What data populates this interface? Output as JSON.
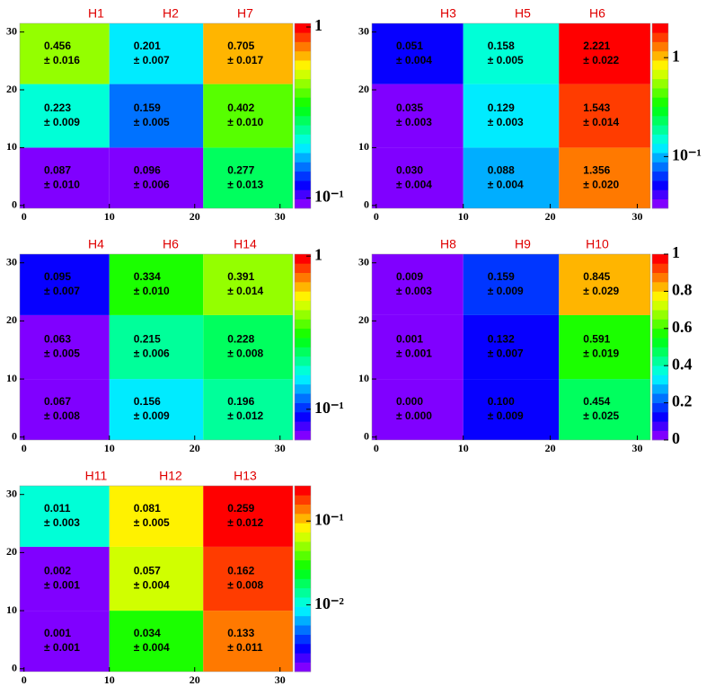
{
  "chart_data": [
    {
      "type": "heatmap",
      "columns": [
        "H1",
        "H2",
        "H7"
      ],
      "xlim": [
        -0.5,
        31.5
      ],
      "xticks": [
        0,
        10,
        20,
        30
      ],
      "ylim": [
        -0.5,
        31.5
      ],
      "yticks": [
        0,
        10,
        20,
        30
      ],
      "xbins": [
        -0.5,
        10,
        21,
        31.5
      ],
      "ybins": [
        -0.5,
        10,
        21,
        31.5
      ],
      "values": [
        [
          0.087,
          0.096,
          0.277
        ],
        [
          0.223,
          0.159,
          0.402
        ],
        [
          0.456,
          0.201,
          0.705
        ]
      ],
      "value_labels": [
        [
          "0.087",
          "0.096",
          "0.277"
        ],
        [
          "0.223",
          "0.159",
          "0.402"
        ],
        [
          "0.456",
          "0.201",
          "0.705"
        ]
      ],
      "errors": [
        [
          0.01,
          0.006,
          0.013
        ],
        [
          0.009,
          0.005,
          0.01
        ],
        [
          0.016,
          0.007,
          0.017
        ]
      ],
      "error_labels": [
        [
          "± 0.010",
          "± 0.006",
          "± 0.013"
        ],
        [
          "± 0.009",
          "± 0.005",
          "± 0.010"
        ],
        [
          "± 0.016",
          "± 0.007",
          "± 0.017"
        ]
      ],
      "zlog": true,
      "zlim": [
        0.087,
        1.05
      ],
      "zticks": [
        1,
        {
          "value": 0.1,
          "label": "10⁻¹"
        }
      ]
    },
    {
      "type": "heatmap",
      "columns": [
        "H3",
        "H5",
        "H6"
      ],
      "xlim": [
        -0.5,
        31.5
      ],
      "xticks": [
        0,
        10,
        20,
        30
      ],
      "ylim": [
        -0.5,
        31.5
      ],
      "yticks": [
        0,
        10,
        20,
        30
      ],
      "xbins": [
        -0.5,
        10,
        21,
        31.5
      ],
      "ybins": [
        -0.5,
        10,
        21,
        31.5
      ],
      "values": [
        [
          0.03,
          0.088,
          1.356
        ],
        [
          0.035,
          0.129,
          1.543
        ],
        [
          0.051,
          0.158,
          2.221
        ]
      ],
      "value_labels": [
        [
          "0.030",
          "0.088",
          "1.356"
        ],
        [
          "0.035",
          "0.129",
          "1.543"
        ],
        [
          "0.051",
          "0.158",
          "2.221"
        ]
      ],
      "errors": [
        [
          0.004,
          0.004,
          0.02
        ],
        [
          0.003,
          0.003,
          0.014
        ],
        [
          0.004,
          0.005,
          0.022
        ]
      ],
      "error_labels": [
        [
          "± 0.004",
          "± 0.004",
          "± 0.020"
        ],
        [
          "± 0.003",
          "± 0.003",
          "± 0.014"
        ],
        [
          "± 0.004",
          "± 0.005",
          "± 0.022"
        ]
      ],
      "zlog": true,
      "zlim": [
        0.03,
        2.221
      ],
      "zticks": [
        1,
        {
          "value": 0.1,
          "label": "10⁻¹"
        }
      ]
    },
    {
      "type": "heatmap",
      "columns": [
        "H4",
        "H6",
        "H14"
      ],
      "xlim": [
        -0.5,
        31.5
      ],
      "xticks": [
        0,
        10,
        20,
        30
      ],
      "ylim": [
        -0.5,
        31.5
      ],
      "yticks": [
        0,
        10,
        20,
        30
      ],
      "xbins": [
        -0.5,
        10,
        21,
        31.5
      ],
      "ybins": [
        -0.5,
        10,
        21,
        31.5
      ],
      "values": [
        [
          0.067,
          0.156,
          0.196
        ],
        [
          0.063,
          0.215,
          0.228
        ],
        [
          0.095,
          0.334,
          0.391
        ]
      ],
      "value_labels": [
        [
          "0.067",
          "0.156",
          "0.196"
        ],
        [
          "0.063",
          "0.215",
          "0.228"
        ],
        [
          "0.095",
          "0.334",
          "0.391"
        ]
      ],
      "errors": [
        [
          0.008,
          0.009,
          0.012
        ],
        [
          0.005,
          0.006,
          0.008
        ],
        [
          0.007,
          0.01,
          0.014
        ]
      ],
      "error_labels": [
        [
          "± 0.008",
          "± 0.009",
          "± 0.012"
        ],
        [
          "± 0.005",
          "± 0.006",
          "± 0.008"
        ],
        [
          "± 0.007",
          "± 0.010",
          "± 0.014"
        ]
      ],
      "zlog": true,
      "zlim": [
        0.063,
        1.03
      ],
      "zticks": [
        1,
        {
          "value": 0.1,
          "label": "10⁻¹"
        }
      ]
    },
    {
      "type": "heatmap",
      "columns": [
        "H8",
        "H9",
        "H10"
      ],
      "xlim": [
        -0.5,
        31.5
      ],
      "xticks": [
        0,
        10,
        20,
        30
      ],
      "ylim": [
        -0.5,
        31.5
      ],
      "yticks": [
        0,
        10,
        20,
        30
      ],
      "xbins": [
        -0.5,
        10,
        21,
        31.5
      ],
      "ybins": [
        -0.5,
        10,
        21,
        31.5
      ],
      "values": [
        [
          0.0,
          0.1,
          0.454
        ],
        [
          0.001,
          0.132,
          0.591
        ],
        [
          0.009,
          0.159,
          0.845
        ]
      ],
      "value_labels": [
        [
          "0.000",
          "0.100",
          "0.454"
        ],
        [
          "0.001",
          "0.132",
          "0.591"
        ],
        [
          "0.009",
          "0.159",
          "0.845"
        ]
      ],
      "errors": [
        [
          0.0,
          0.009,
          0.025
        ],
        [
          0.001,
          0.007,
          0.019
        ],
        [
          0.003,
          0.009,
          0.029
        ]
      ],
      "error_labels": [
        [
          "± 0.000",
          "± 0.009",
          "± 0.025"
        ],
        [
          "± 0.001",
          "± 0.007",
          "± 0.019"
        ],
        [
          "± 0.003",
          "± 0.009",
          "± 0.029"
        ]
      ],
      "zlog": false,
      "zlim": [
        0,
        1
      ],
      "zticks": [
        0,
        0.2,
        0.4,
        0.6,
        0.8,
        1
      ]
    },
    {
      "type": "heatmap",
      "columns": [
        "H11",
        "H12",
        "H13"
      ],
      "xlim": [
        -0.5,
        31.5
      ],
      "xticks": [
        0,
        10,
        20,
        30
      ],
      "ylim": [
        -0.5,
        31.5
      ],
      "yticks": [
        0,
        10,
        20,
        30
      ],
      "xbins": [
        -0.5,
        10,
        21,
        31.5
      ],
      "ybins": [
        -0.5,
        10,
        21,
        31.5
      ],
      "values": [
        [
          0.001,
          0.034,
          0.133
        ],
        [
          0.002,
          0.057,
          0.162
        ],
        [
          0.011,
          0.081,
          0.259
        ]
      ],
      "value_labels": [
        [
          "0.001",
          "0.034",
          "0.133"
        ],
        [
          "0.002",
          "0.057",
          "0.162"
        ],
        [
          "0.011",
          "0.081",
          "0.259"
        ]
      ],
      "errors": [
        [
          0.001,
          0.004,
          0.011
        ],
        [
          0.001,
          0.004,
          0.008
        ],
        [
          0.003,
          0.005,
          0.012
        ]
      ],
      "error_labels": [
        [
          "± 0.001",
          "± 0.004",
          "± 0.011"
        ],
        [
          "± 0.001",
          "± 0.004",
          "± 0.008"
        ],
        [
          "± 0.003",
          "± 0.005",
          "± 0.012"
        ]
      ],
      "zlog": true,
      "zlim": [
        0.0016,
        0.263
      ],
      "zticks": [
        {
          "value": 0.1,
          "label": "10⁻¹"
        },
        {
          "value": 0.01,
          "label": "10⁻²"
        }
      ]
    }
  ]
}
